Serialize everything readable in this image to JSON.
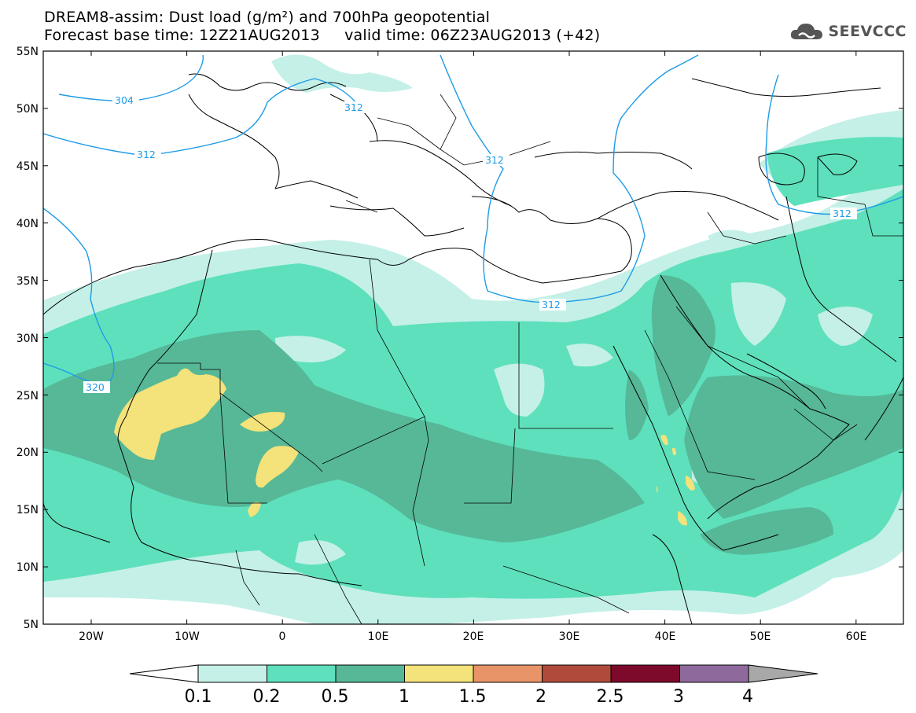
{
  "title": {
    "line1": "DREAM8-assim: Dust load (g/m²) and 700hPa geopotential",
    "line2_base": "Forecast base time: 12Z21AUG2013",
    "line2_valid": "valid time: 06Z23AUG2013 (+42)"
  },
  "logo": {
    "text": "SEEVCCC",
    "icon": "cloud-icon"
  },
  "map": {
    "lat_labels": [
      "55N",
      "50N",
      "45N",
      "40N",
      "35N",
      "30N",
      "25N",
      "20N",
      "15N",
      "10N",
      "5N"
    ],
    "lon_labels": [
      "20W",
      "10W",
      "0",
      "10E",
      "20E",
      "30E",
      "40E",
      "50E",
      "60E"
    ],
    "contour_labels": [
      "304",
      "312",
      "312",
      "312",
      "312",
      "312",
      "320"
    ]
  },
  "colorbar": {
    "colors": [
      "#c4f0e8",
      "#5ee0bd",
      "#56b897",
      "#f4e27a",
      "#e99468",
      "#b04b3c",
      "#7d0a2a",
      "#8e6a9c",
      "#a8a8a8"
    ],
    "labels": [
      "0.1",
      "0.2",
      "0.5",
      "1",
      "1.5",
      "2",
      "2.5",
      "3",
      "4"
    ]
  }
}
